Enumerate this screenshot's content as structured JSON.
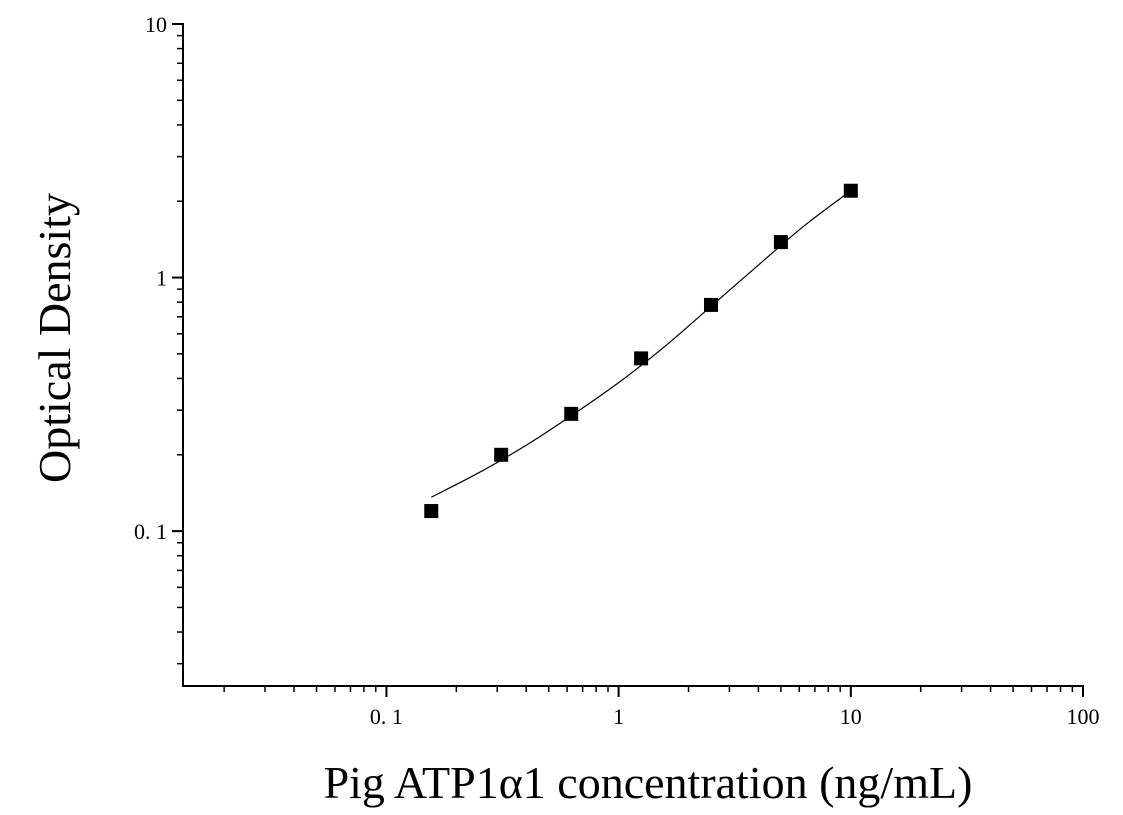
{
  "chart_data": {
    "type": "scatter",
    "title": "",
    "xlabel": "Pig ATP1α1 concentration (ng/mL)",
    "ylabel": "Optical Density",
    "x_scale": "log",
    "y_scale": "log",
    "xlim": [
      0.0133,
      100
    ],
    "ylim": [
      0.0245,
      10
    ],
    "x_ticks": [
      {
        "value": 0.1,
        "label": "0. 1"
      },
      {
        "value": 1,
        "label": "1"
      },
      {
        "value": 10,
        "label": "10"
      },
      {
        "value": 100,
        "label": "100"
      }
    ],
    "y_ticks": [
      {
        "value": 0.1,
        "label": "0. 1"
      },
      {
        "value": 1,
        "label": "1"
      },
      {
        "value": 10,
        "label": "10"
      }
    ],
    "grid": false,
    "legend": "none",
    "series": [
      {
        "marker": "square",
        "color": "#000000",
        "points": [
          {
            "x": 0.156,
            "y": 0.12
          },
          {
            "x": 0.312,
            "y": 0.2
          },
          {
            "x": 0.625,
            "y": 0.29
          },
          {
            "x": 1.25,
            "y": 0.48
          },
          {
            "x": 2.5,
            "y": 0.78
          },
          {
            "x": 5,
            "y": 1.38
          },
          {
            "x": 10,
            "y": 2.2
          }
        ]
      }
    ],
    "fit_curve": {
      "color": "#000000",
      "points": [
        {
          "x": 0.156,
          "y": 0.136
        },
        {
          "x": 0.25,
          "y": 0.17
        },
        {
          "x": 0.4,
          "y": 0.218
        },
        {
          "x": 0.625,
          "y": 0.285
        },
        {
          "x": 1.0,
          "y": 0.385
        },
        {
          "x": 1.6,
          "y": 0.54
        },
        {
          "x": 2.5,
          "y": 0.77
        },
        {
          "x": 4.0,
          "y": 1.12
        },
        {
          "x": 6.3,
          "y": 1.6
        },
        {
          "x": 10,
          "y": 2.2
        }
      ]
    }
  }
}
